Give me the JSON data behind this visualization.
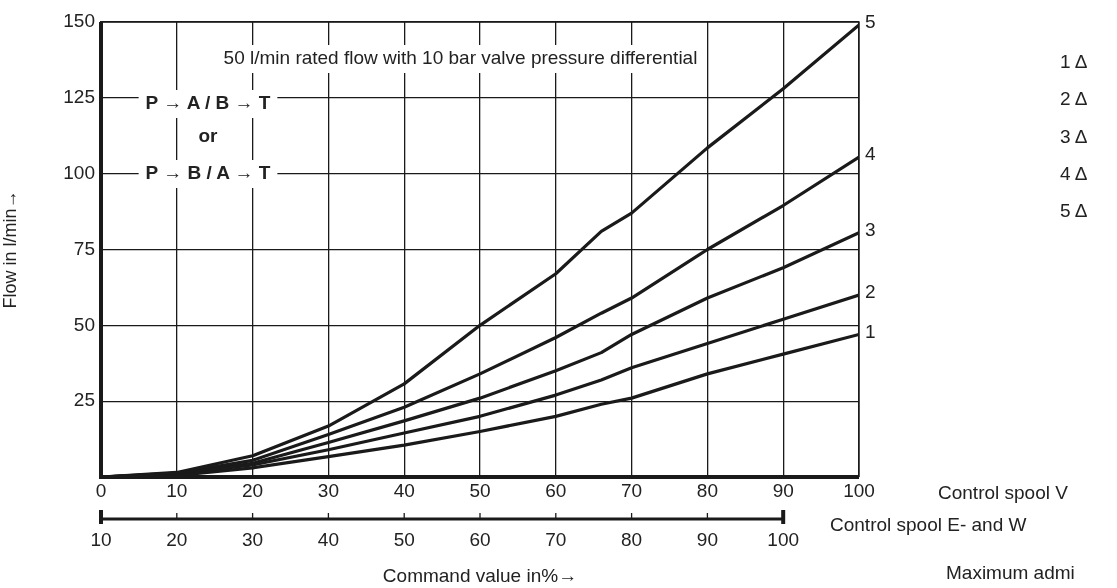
{
  "chart_data": {
    "type": "line",
    "title": "50 l/min rated flow with 10 bar valve pressure differential",
    "xlabel": "Command value in%→",
    "ylabel": "Flow in l/min→",
    "x": [
      0,
      10,
      20,
      30,
      40,
      50,
      60,
      66,
      70,
      80,
      90,
      100
    ],
    "series": [
      {
        "name": "1",
        "color": "#1a1a1a",
        "values": [
          0,
          0.5,
          3,
          6.7,
          10.5,
          15,
          20,
          24,
          26,
          34,
          40.5,
          47
        ]
      },
      {
        "name": "2",
        "color": "#1a1a1a",
        "values": [
          0,
          1,
          4,
          9,
          14.5,
          20,
          27,
          32,
          36,
          44,
          52,
          60
        ]
      },
      {
        "name": "3",
        "color": "#1a1a1a",
        "values": [
          0,
          1,
          4.5,
          11.4,
          18.5,
          26,
          35,
          41,
          47,
          59,
          69,
          80.5
        ]
      },
      {
        "name": "4",
        "color": "#1a1a1a",
        "values": [
          0,
          1.3,
          5.5,
          14,
          23,
          34,
          46,
          54,
          59,
          75,
          89.5,
          105.5
        ]
      },
      {
        "name": "5",
        "color": "#1a1a1a",
        "values": [
          0,
          1.5,
          7,
          16.8,
          30.7,
          50,
          67,
          81,
          87,
          108.5,
          128,
          149
        ]
      }
    ],
    "xlim": [
      0,
      100
    ],
    "xticks": [
      0,
      10,
      20,
      30,
      40,
      50,
      60,
      70,
      80,
      90,
      100
    ],
    "ylim": [
      0,
      150
    ],
    "yticks": [
      {
        "value": 0,
        "label": null
      },
      25,
      50,
      75,
      100,
      125,
      150
    ],
    "x2lim": [
      10,
      110
    ],
    "x2ticks": [
      10,
      20,
      30,
      40,
      50,
      60,
      70,
      80,
      90,
      100
    ],
    "grid": true,
    "legend": false,
    "marker": "none",
    "line_style": "solid",
    "annotations": [
      "P → A / B → T",
      "or",
      "P → B / A → T",
      "Control spool V",
      "Control spool E- and W",
      "Maximum admi",
      "1 Δ",
      "2 Δ",
      "3 Δ",
      "4 Δ",
      "5 Δ"
    ]
  }
}
